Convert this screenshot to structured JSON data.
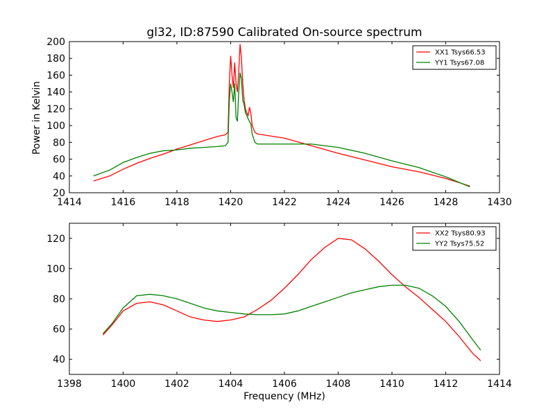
{
  "chart_data": [
    {
      "type": "line",
      "title": "gl32, ID:87590 Calibrated On-source spectrum",
      "xlabel": "",
      "ylabel": "Power in Kelvin",
      "xlim": [
        1414,
        1430
      ],
      "ylim": [
        20,
        200
      ],
      "xticks": [
        "1414",
        "1416",
        "1418",
        "1420",
        "1422",
        "1424",
        "1426",
        "1428",
        "1430"
      ],
      "yticks": [
        "20",
        "40",
        "60",
        "80",
        "100",
        "120",
        "140",
        "160",
        "180",
        "200"
      ],
      "legend_position": "top-right",
      "series": [
        {
          "name": "XX1 Tsys66.53",
          "color": "#ff0000",
          "points": [
            [
              1414.9,
              34
            ],
            [
              1415.5,
              40
            ],
            [
              1416,
              48
            ],
            [
              1416.5,
              55
            ],
            [
              1417,
              61
            ],
            [
              1417.5,
              66
            ],
            [
              1418,
              72
            ],
            [
              1418.5,
              77
            ],
            [
              1419,
              82
            ],
            [
              1419.5,
              87
            ],
            [
              1419.8,
              89
            ],
            [
              1419.9,
              92
            ],
            [
              1419.95,
              150
            ],
            [
              1420.0,
              183
            ],
            [
              1420.05,
              160
            ],
            [
              1420.1,
              145
            ],
            [
              1420.15,
              175
            ],
            [
              1420.2,
              150
            ],
            [
              1420.25,
              140
            ],
            [
              1420.3,
              165
            ],
            [
              1420.35,
              197
            ],
            [
              1420.4,
              180
            ],
            [
              1420.45,
              150
            ],
            [
              1420.5,
              130
            ],
            [
              1420.55,
              120
            ],
            [
              1420.6,
              115
            ],
            [
              1420.65,
              112
            ],
            [
              1420.7,
              122
            ],
            [
              1420.75,
              115
            ],
            [
              1420.8,
              100
            ],
            [
              1420.9,
              92
            ],
            [
              1421,
              90
            ],
            [
              1422,
              85
            ],
            [
              1423,
              76
            ],
            [
              1424,
              67
            ],
            [
              1425,
              59
            ],
            [
              1426,
              51
            ],
            [
              1427,
              45
            ],
            [
              1428,
              37
            ],
            [
              1428.9,
              28
            ]
          ]
        },
        {
          "name": "YY1 Tsys67.08",
          "color": "#008000",
          "points": [
            [
              1414.9,
              40
            ],
            [
              1415.5,
              47
            ],
            [
              1416,
              56
            ],
            [
              1416.5,
              62
            ],
            [
              1417,
              67
            ],
            [
              1417.5,
              70
            ],
            [
              1418,
              71
            ],
            [
              1418.5,
              73
            ],
            [
              1419,
              74
            ],
            [
              1419.5,
              75
            ],
            [
              1419.8,
              76
            ],
            [
              1419.9,
              80
            ],
            [
              1419.95,
              130
            ],
            [
              1420.0,
              150
            ],
            [
              1420.05,
              140
            ],
            [
              1420.1,
              128
            ],
            [
              1420.15,
              150
            ],
            [
              1420.2,
              110
            ],
            [
              1420.25,
              105
            ],
            [
              1420.3,
              140
            ],
            [
              1420.35,
              163
            ],
            [
              1420.4,
              155
            ],
            [
              1420.45,
              130
            ],
            [
              1420.5,
              125
            ],
            [
              1420.55,
              115
            ],
            [
              1420.6,
              112
            ],
            [
              1420.65,
              108
            ],
            [
              1420.7,
              105
            ],
            [
              1420.75,
              102
            ],
            [
              1420.8,
              90
            ],
            [
              1420.9,
              80
            ],
            [
              1421,
              78
            ],
            [
              1422,
              78
            ],
            [
              1423,
              78
            ],
            [
              1424,
              74
            ],
            [
              1425,
              67
            ],
            [
              1426,
              58
            ],
            [
              1427,
              50
            ],
            [
              1428,
              39
            ],
            [
              1428.9,
              27
            ]
          ]
        }
      ]
    },
    {
      "type": "line",
      "title": "",
      "xlabel": "Frequency (MHz)",
      "ylabel": "",
      "xlim": [
        1398,
        1414
      ],
      "ylim": [
        30,
        130
      ],
      "xticks": [
        "1398",
        "1400",
        "1402",
        "1404",
        "1406",
        "1408",
        "1410",
        "1412",
        "1414"
      ],
      "yticks": [
        "40",
        "60",
        "80",
        "100",
        "120"
      ],
      "legend_position": "top-right",
      "series": [
        {
          "name": "XX2 Tsys80.93",
          "color": "#ff0000",
          "points": [
            [
              1399.25,
              56
            ],
            [
              1399.6,
              63
            ],
            [
              1400,
              72
            ],
            [
              1400.5,
              77
            ],
            [
              1401,
              78
            ],
            [
              1401.5,
              76
            ],
            [
              1402,
              72
            ],
            [
              1402.5,
              68
            ],
            [
              1403,
              66
            ],
            [
              1403.5,
              65
            ],
            [
              1404,
              66
            ],
            [
              1404.5,
              68
            ],
            [
              1405,
              73
            ],
            [
              1405.5,
              79
            ],
            [
              1406,
              87
            ],
            [
              1406.5,
              96
            ],
            [
              1407,
              106
            ],
            [
              1407.5,
              114
            ],
            [
              1408,
              120
            ],
            [
              1408.5,
              119
            ],
            [
              1409,
              113
            ],
            [
              1409.5,
              105
            ],
            [
              1410,
              96
            ],
            [
              1410.5,
              88
            ],
            [
              1411,
              81
            ],
            [
              1411.5,
              73
            ],
            [
              1412,
              65
            ],
            [
              1412.5,
              55
            ],
            [
              1413,
              44
            ],
            [
              1413.3,
              39
            ]
          ]
        },
        {
          "name": "YY2 Tsys75.52",
          "color": "#008000",
          "points": [
            [
              1399.25,
              57
            ],
            [
              1399.6,
              64
            ],
            [
              1400,
              74
            ],
            [
              1400.5,
              82
            ],
            [
              1401,
              83
            ],
            [
              1401.5,
              82
            ],
            [
              1402,
              80
            ],
            [
              1402.5,
              77
            ],
            [
              1403,
              74
            ],
            [
              1403.5,
              72
            ],
            [
              1404,
              71
            ],
            [
              1404.5,
              70
            ],
            [
              1405,
              69.5
            ],
            [
              1405.5,
              69.5
            ],
            [
              1406,
              70
            ],
            [
              1406.5,
              72
            ],
            [
              1407,
              75
            ],
            [
              1407.5,
              78
            ],
            [
              1408,
              81
            ],
            [
              1408.5,
              84
            ],
            [
              1409,
              86
            ],
            [
              1409.5,
              88
            ],
            [
              1410,
              89
            ],
            [
              1410.5,
              89
            ],
            [
              1411,
              87
            ],
            [
              1411.5,
              82
            ],
            [
              1412,
              75
            ],
            [
              1412.5,
              65
            ],
            [
              1413,
              53
            ],
            [
              1413.3,
              46
            ]
          ]
        }
      ]
    }
  ]
}
